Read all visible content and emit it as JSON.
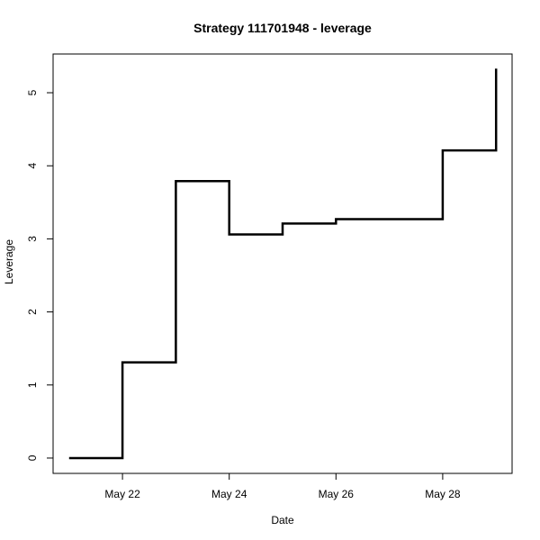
{
  "chart_data": {
    "type": "line",
    "step": true,
    "title": "Strategy 111701948 - leverage",
    "xlabel": "Date",
    "ylabel": "Leverage",
    "x_ticks": [
      {
        "date": "2024-05-22",
        "label": "May 22"
      },
      {
        "date": "2024-05-24",
        "label": "May 24"
      },
      {
        "date": "2024-05-26",
        "label": "May 26"
      },
      {
        "date": "2024-05-28",
        "label": "May 28"
      }
    ],
    "y_ticks": [
      0,
      1,
      2,
      3,
      4,
      5
    ],
    "xlim": [
      "2024-05-20T16:48",
      "2024-05-29T07:12"
    ],
    "ylim": [
      -0.21,
      5.53
    ],
    "series": [
      {
        "x": [
          "2024-05-21",
          "2024-05-22",
          "2024-05-23",
          "2024-05-24",
          "2024-05-25",
          "2024-05-26",
          "2024-05-27",
          "2024-05-28",
          "2024-05-29"
        ],
        "values": [
          0.0,
          1.31,
          3.79,
          3.06,
          3.21,
          3.27,
          3.27,
          4.21,
          5.33
        ]
      }
    ],
    "grid": false,
    "legend": "none",
    "line_color": "#000000",
    "box_color": "#000000"
  }
}
